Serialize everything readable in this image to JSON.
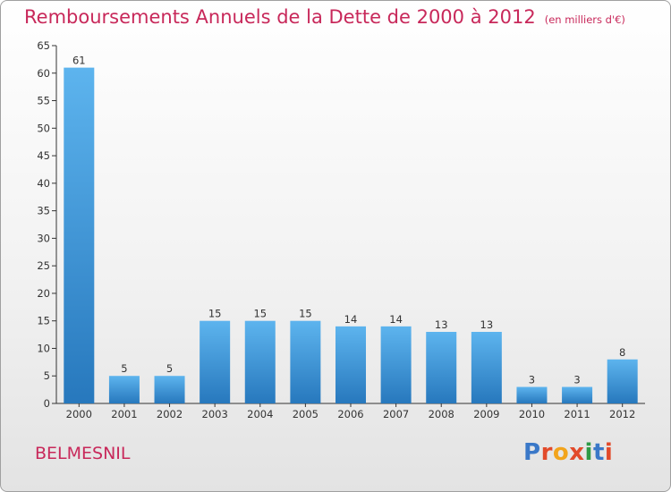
{
  "header": {
    "title": "Remboursements Annuels de la Dette de 2000 à 2012",
    "unit": "(en milliers d'€)"
  },
  "commune": "BELMESNIL",
  "logo": {
    "text": "Proxiti",
    "colors": [
      "#3a78c8",
      "#e24a2a",
      "#f2a41c",
      "#e24a2a",
      "#2e9a45",
      "#3a78c8",
      "#e24a2a"
    ]
  },
  "colors": {
    "title": "#c8285a",
    "bar_top": "#5db4ee",
    "bar_bottom": "#2778bd",
    "axis": "#333333"
  },
  "chart_data": {
    "type": "bar",
    "title": "Remboursements Annuels de la Dette de 2000 à 2012",
    "subtitle": "(en milliers d'€)",
    "categories": [
      "2000",
      "2001",
      "2002",
      "2003",
      "2004",
      "2005",
      "2006",
      "2007",
      "2008",
      "2009",
      "2010",
      "2011",
      "2012"
    ],
    "values": [
      61,
      5,
      5,
      15,
      15,
      15,
      14,
      14,
      13,
      13,
      3,
      3,
      8
    ],
    "ylim": [
      0,
      65
    ],
    "yticks": [
      0,
      5,
      10,
      15,
      20,
      25,
      30,
      35,
      40,
      45,
      50,
      55,
      60,
      65
    ],
    "grid": false,
    "data_labels": true
  }
}
